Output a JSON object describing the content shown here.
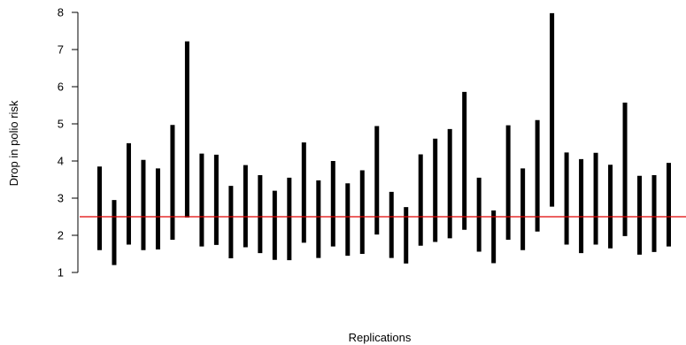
{
  "chart_data": {
    "type": "interval",
    "xlabel": "Replications",
    "ylabel": "Drop in polio risk",
    "ylim": [
      1,
      8
    ],
    "yticks": [
      1,
      2,
      3,
      4,
      5,
      6,
      7,
      8
    ],
    "grid": false,
    "reference_line": {
      "y": 2.5,
      "color": "#e00000"
    },
    "bar_color": "#000000",
    "intervals": [
      {
        "low": 1.6,
        "high": 3.85
      },
      {
        "low": 1.2,
        "high": 2.95
      },
      {
        "low": 1.75,
        "high": 4.48
      },
      {
        "low": 1.6,
        "high": 4.03
      },
      {
        "low": 1.62,
        "high": 3.8
      },
      {
        "low": 1.88,
        "high": 4.97
      },
      {
        "low": 2.48,
        "high": 7.22
      },
      {
        "low": 1.7,
        "high": 4.2
      },
      {
        "low": 1.74,
        "high": 4.17
      },
      {
        "low": 1.38,
        "high": 3.33
      },
      {
        "low": 1.68,
        "high": 3.89
      },
      {
        "low": 1.52,
        "high": 3.62
      },
      {
        "low": 1.34,
        "high": 3.2
      },
      {
        "low": 1.33,
        "high": 3.55
      },
      {
        "low": 1.8,
        "high": 4.5
      },
      {
        "low": 1.39,
        "high": 3.48
      },
      {
        "low": 1.7,
        "high": 4.0
      },
      {
        "low": 1.45,
        "high": 3.4
      },
      {
        "low": 1.5,
        "high": 3.75
      },
      {
        "low": 2.02,
        "high": 4.94
      },
      {
        "low": 1.39,
        "high": 3.17
      },
      {
        "low": 1.24,
        "high": 2.76
      },
      {
        "low": 1.72,
        "high": 4.18
      },
      {
        "low": 1.82,
        "high": 4.6
      },
      {
        "low": 1.92,
        "high": 4.86
      },
      {
        "low": 2.15,
        "high": 5.86
      },
      {
        "low": 1.56,
        "high": 3.55
      },
      {
        "low": 1.25,
        "high": 2.67
      },
      {
        "low": 1.88,
        "high": 4.96
      },
      {
        "low": 1.6,
        "high": 3.8
      },
      {
        "low": 2.1,
        "high": 5.1
      },
      {
        "low": 2.77,
        "high": 7.98
      },
      {
        "low": 1.75,
        "high": 4.23
      },
      {
        "low": 1.52,
        "high": 4.05
      },
      {
        "low": 1.75,
        "high": 4.22
      },
      {
        "low": 1.65,
        "high": 3.9
      },
      {
        "low": 1.98,
        "high": 5.57
      },
      {
        "low": 1.48,
        "high": 3.6
      },
      {
        "low": 1.55,
        "high": 3.62
      },
      {
        "low": 1.7,
        "high": 3.95
      }
    ]
  }
}
